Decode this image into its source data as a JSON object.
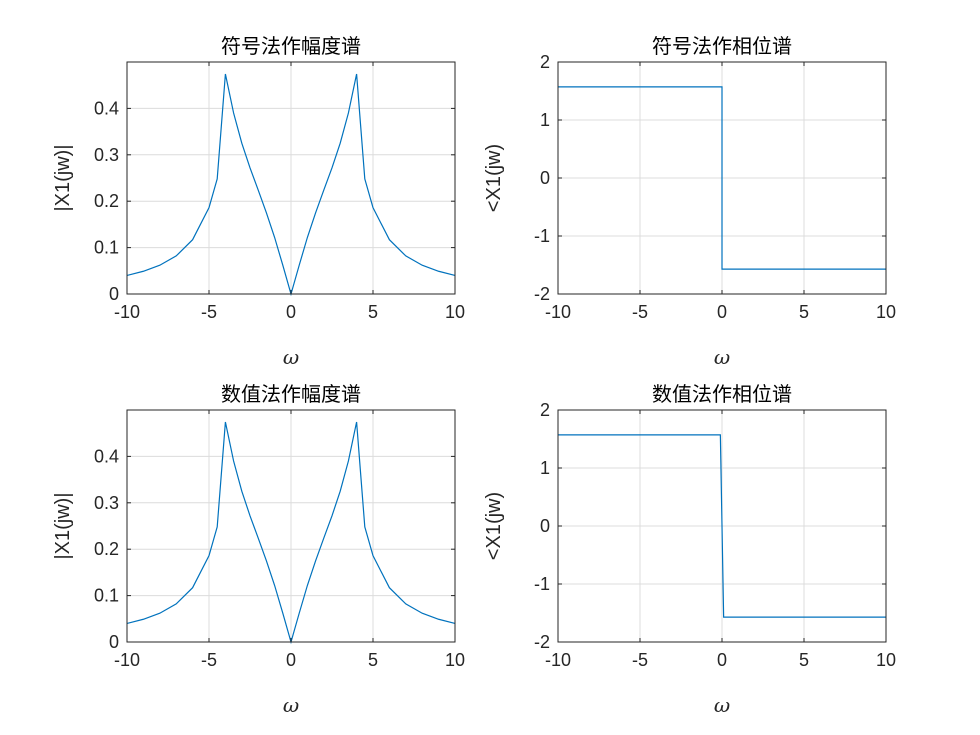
{
  "colors": {
    "series": "#0072bd",
    "grid": "#dcdcdc",
    "axis": "#262626"
  },
  "chart_data": [
    {
      "type": "line",
      "title": "符号法作幅度谱",
      "xlabel": "ω",
      "ylabel": "|X1(jw)|",
      "xlim": [
        -10,
        10
      ],
      "ylim": [
        0,
        0.5
      ],
      "xticks": [
        -10,
        -5,
        0,
        5,
        10
      ],
      "yticks": [
        0,
        0.1,
        0.2,
        0.3,
        0.4
      ],
      "grid": true,
      "series": [
        {
          "x": [
            -10,
            -9,
            -8,
            -7,
            -6,
            -5,
            -4.5,
            -4,
            -3.5,
            -3,
            -2.5,
            -2,
            -1.5,
            -1,
            -0.5,
            0,
            0.5,
            1,
            1.5,
            2,
            2.5,
            3,
            3.5,
            4,
            4.5,
            5,
            6,
            7,
            8,
            9,
            10
          ],
          "y": [
            0.04,
            0.049,
            0.062,
            0.082,
            0.117,
            0.186,
            0.248,
            0.474,
            0.39,
            0.325,
            0.272,
            0.224,
            0.175,
            0.122,
            0.062,
            0,
            0.062,
            0.122,
            0.175,
            0.224,
            0.272,
            0.325,
            0.39,
            0.474,
            0.248,
            0.186,
            0.117,
            0.082,
            0.062,
            0.049,
            0.04
          ]
        }
      ]
    },
    {
      "type": "line",
      "title": "符号法作相位谱",
      "xlabel": "ω",
      "ylabel": "<X1(jw)",
      "xlim": [
        -10,
        10
      ],
      "ylim": [
        -2,
        2
      ],
      "xticks": [
        -10,
        -5,
        0,
        5,
        10
      ],
      "yticks": [
        -2,
        -1,
        0,
        1,
        2
      ],
      "grid": true,
      "series": [
        {
          "x": [
            -10,
            0,
            0,
            10
          ],
          "y": [
            1.5708,
            1.5708,
            -1.5708,
            -1.5708
          ]
        }
      ]
    },
    {
      "type": "line",
      "title": "数值法作幅度谱",
      "xlabel": "ω",
      "ylabel": "|X1(jw)|",
      "xlim": [
        -10,
        10
      ],
      "ylim": [
        0,
        0.5
      ],
      "xticks": [
        -10,
        -5,
        0,
        5,
        10
      ],
      "yticks": [
        0,
        0.1,
        0.2,
        0.3,
        0.4
      ],
      "grid": true,
      "series": [
        {
          "x": [
            -10,
            -9,
            -8,
            -7,
            -6,
            -5,
            -4.5,
            -4,
            -3.5,
            -3,
            -2.5,
            -2,
            -1.5,
            -1,
            -0.5,
            0,
            0.5,
            1,
            1.5,
            2,
            2.5,
            3,
            3.5,
            4,
            4.5,
            5,
            6,
            7,
            8,
            9,
            10
          ],
          "y": [
            0.04,
            0.049,
            0.062,
            0.082,
            0.117,
            0.186,
            0.248,
            0.474,
            0.39,
            0.325,
            0.272,
            0.224,
            0.175,
            0.122,
            0.062,
            0,
            0.062,
            0.122,
            0.175,
            0.224,
            0.272,
            0.325,
            0.39,
            0.474,
            0.248,
            0.186,
            0.117,
            0.082,
            0.062,
            0.049,
            0.04
          ]
        }
      ]
    },
    {
      "type": "line",
      "title": "数值法作相位谱",
      "xlabel": "ω",
      "ylabel": "<X1(jw)",
      "xlim": [
        -10,
        10
      ],
      "ylim": [
        -2,
        2
      ],
      "xticks": [
        -10,
        -5,
        0,
        5,
        10
      ],
      "yticks": [
        -2,
        -1,
        0,
        1,
        2
      ],
      "grid": true,
      "series": [
        {
          "x": [
            -10,
            -0.1,
            0.1,
            10
          ],
          "y": [
            1.5708,
            1.5708,
            -1.5708,
            -1.5708
          ]
        }
      ]
    }
  ]
}
